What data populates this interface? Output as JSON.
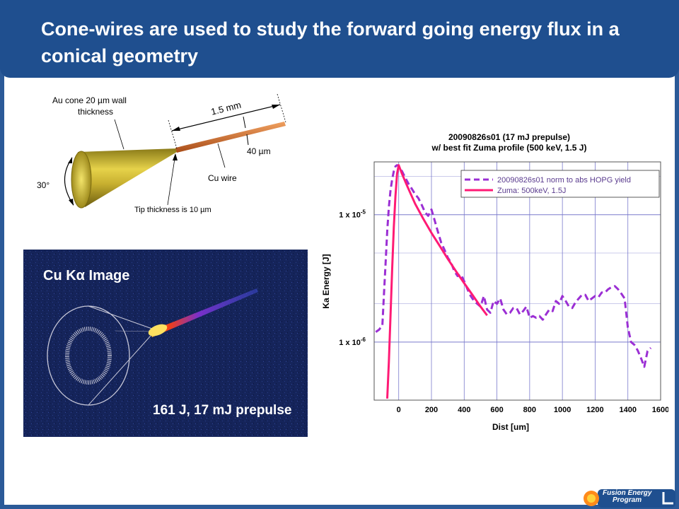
{
  "slide": {
    "title": "Cone-wires are used to study the forward going energy flux in a conical geometry"
  },
  "schematic": {
    "cone_wall_label_line1": "Au cone 20 µm wall",
    "cone_wall_label_line2": "thickness",
    "length_label": "1.5 mm",
    "wire_diameter_label": "40 µm",
    "wire_label": "Cu wire",
    "angle_label": "30°",
    "tip_label": "Tip thickness is 10 µm"
  },
  "kalpha_image": {
    "title": "Cu Kα Image",
    "caption": "161 J, 17 mJ prepulse"
  },
  "footer": {
    "logo_line1": "Fusion Energy",
    "logo_line2": "Program"
  },
  "colors": {
    "header": "#1f4f8f",
    "data_series": "#9b2fd4",
    "fit_series": "#ff1a75",
    "grid": "#7a7acc"
  },
  "chart_data": {
    "type": "line",
    "title": "20090826s01 (17 mJ prepulse)",
    "subtitle": "w/ best fit Zuma profile (500 keV, 1.5 J)",
    "xlabel": "Dist [um]",
    "ylabel": "Ka Energy [J]",
    "xlim": [
      -150,
      1600
    ],
    "ylim_log": [
      3.5e-07,
      2.6e-05
    ],
    "y_scale": "log",
    "grid": true,
    "legend_position": "top-right",
    "x_ticks": [
      "0",
      "200",
      "400",
      "600",
      "800",
      "1000",
      "1200",
      "1400",
      "1600"
    ],
    "x_tick_values": [
      0,
      200,
      400,
      600,
      800,
      1000,
      1200,
      1400,
      1600
    ],
    "y_ticks": [
      "1 x 10-5",
      "1 x 10-6"
    ],
    "y_tick_values": [
      1e-05,
      1e-06
    ],
    "series": [
      {
        "name": "20090826s01 norm to abs HOPG yield",
        "style": "dashed",
        "x": [
          -140,
          -120,
          -100,
          -90,
          -80,
          -70,
          -60,
          -50,
          -40,
          -30,
          -20,
          -10,
          0,
          20,
          40,
          60,
          80,
          100,
          120,
          140,
          160,
          180,
          200,
          220,
          240,
          260,
          280,
          300,
          320,
          340,
          360,
          380,
          400,
          420,
          440,
          460,
          480,
          500,
          520,
          540,
          560,
          580,
          600,
          620,
          640,
          660,
          680,
          700,
          720,
          740,
          760,
          780,
          800,
          820,
          840,
          860,
          880,
          900,
          920,
          940,
          960,
          980,
          1000,
          1020,
          1040,
          1060,
          1080,
          1100,
          1120,
          1140,
          1160,
          1180,
          1200,
          1220,
          1240,
          1260,
          1280,
          1300,
          1320,
          1340,
          1360,
          1380,
          1400,
          1420,
          1440,
          1460,
          1480,
          1500,
          1520,
          1540
        ],
        "y": [
          1.2e-06,
          1.25e-06,
          1.35e-06,
          2.4e-06,
          4.2e-06,
          7.5e-06,
          1.15e-05,
          1.55e-05,
          1.9e-05,
          2.2e-05,
          2.4e-05,
          2.45e-05,
          2.42e-05,
          2.2e-05,
          1.95e-05,
          1.75e-05,
          1.6e-05,
          1.45e-05,
          1.35e-05,
          1.2e-05,
          1.05e-05,
          9.8e-06,
          1.1e-05,
          9e-06,
          7.3e-06,
          6e-06,
          5.3e-06,
          4.6e-06,
          4.2e-06,
          3.6e-06,
          3.3e-06,
          3.4e-06,
          3e-06,
          2.6e-06,
          2.3e-06,
          2.1e-06,
          2e-06,
          1.9e-06,
          2.3e-06,
          1.8e-06,
          1.7e-06,
          2.1e-06,
          2e-06,
          2.2e-06,
          1.8e-06,
          1.65e-06,
          1.7e-06,
          1.85e-06,
          1.85e-06,
          1.65e-06,
          1.75e-06,
          1.9e-06,
          1.55e-06,
          1.6e-06,
          1.55e-06,
          1.6e-06,
          1.5e-06,
          1.65e-06,
          1.8e-06,
          1.75e-06,
          2.1e-06,
          2e-06,
          2.3e-06,
          2.1e-06,
          1.9e-06,
          1.85e-06,
          2.05e-06,
          2.2e-06,
          2.35e-06,
          2.35e-06,
          2.1e-06,
          2.2e-06,
          2.3e-06,
          2.25e-06,
          2.45e-06,
          2.45e-06,
          2.6e-06,
          2.7e-06,
          2.75e-06,
          2.6e-06,
          2.4e-06,
          2.2e-06,
          1.3e-06,
          1e-06,
          9.5e-07,
          8.6e-07,
          7.5e-07,
          6.4e-07,
          8.5e-07,
          9e-07
        ]
      },
      {
        "name": "Zuma: 500keV, 1.5J",
        "style": "solid",
        "x": [
          -70,
          -60,
          -50,
          -40,
          -30,
          -20,
          -10,
          0,
          20,
          50,
          100,
          150,
          200,
          250,
          300,
          350,
          400,
          450,
          500,
          540
        ],
        "y": [
          3.6e-07,
          7e-07,
          1.6e-06,
          3.8e-06,
          8e-06,
          1.4e-05,
          2.1e-05,
          2.45e-05,
          2.1e-05,
          1.7e-05,
          1.22e-05,
          9.3e-06,
          7.2e-06,
          5.7e-06,
          4.5e-06,
          3.6e-06,
          2.9e-06,
          2.35e-06,
          1.9e-06,
          1.62e-06
        ]
      }
    ]
  }
}
